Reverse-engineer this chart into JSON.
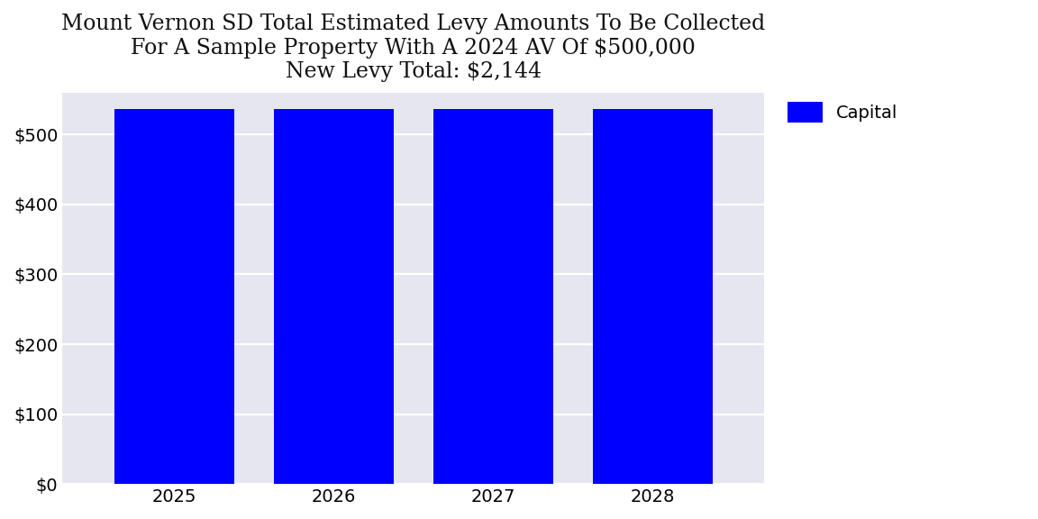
{
  "title": "Mount Vernon SD Total Estimated Levy Amounts To Be Collected\nFor A Sample Property With A 2024 AV Of $500,000\nNew Levy Total: $2,144",
  "categories": [
    2025,
    2026,
    2027,
    2028
  ],
  "values": [
    536,
    536,
    536,
    536
  ],
  "bar_color": "#0000ff",
  "legend_label": "Capital",
  "ylim": [
    0,
    560
  ],
  "yticks": [
    0,
    100,
    200,
    300,
    400,
    500
  ],
  "background_color": "#e6e6f0",
  "title_fontsize": 17,
  "tick_fontsize": 14,
  "legend_fontsize": 14,
  "bar_width": 0.75,
  "xlim": [
    2024.3,
    2028.7
  ]
}
